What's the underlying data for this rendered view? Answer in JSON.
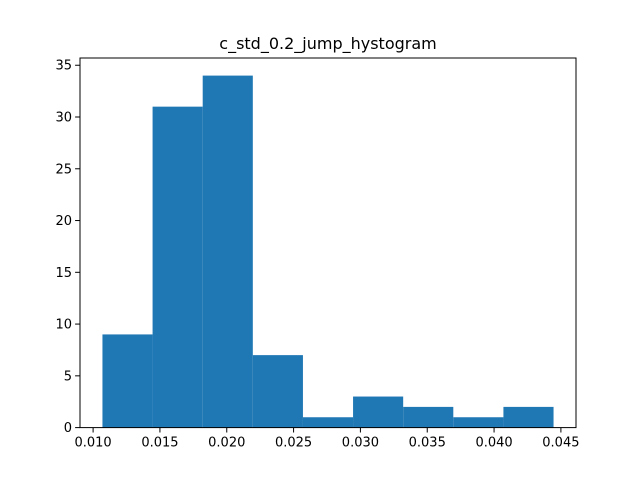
{
  "chart_data": {
    "type": "bar",
    "title": "c_std_0.2_jump_hystogram",
    "xlabel": "",
    "ylabel": "",
    "bin_edges": [
      0.0107,
      0.01445,
      0.0182,
      0.02195,
      0.0257,
      0.02945,
      0.0332,
      0.03695,
      0.0407,
      0.04445
    ],
    "values": [
      9,
      31,
      34,
      7,
      1,
      3,
      2,
      1,
      2
    ],
    "xlim": [
      0.00902,
      0.04613
    ],
    "ylim": [
      0,
      35.7
    ],
    "xticks": [
      0.01,
      0.015,
      0.02,
      0.025,
      0.03,
      0.035,
      0.04,
      0.045
    ],
    "xtick_labels": [
      "0.010",
      "0.015",
      "0.020",
      "0.025",
      "0.030",
      "0.035",
      "0.040",
      "0.045"
    ],
    "yticks": [
      0,
      5,
      10,
      15,
      20,
      25,
      30,
      35
    ],
    "ytick_labels": [
      "0",
      "5",
      "10",
      "15",
      "20",
      "25",
      "30",
      "35"
    ],
    "bar_color": "#1f77b4",
    "grid": false,
    "legend": "none"
  }
}
